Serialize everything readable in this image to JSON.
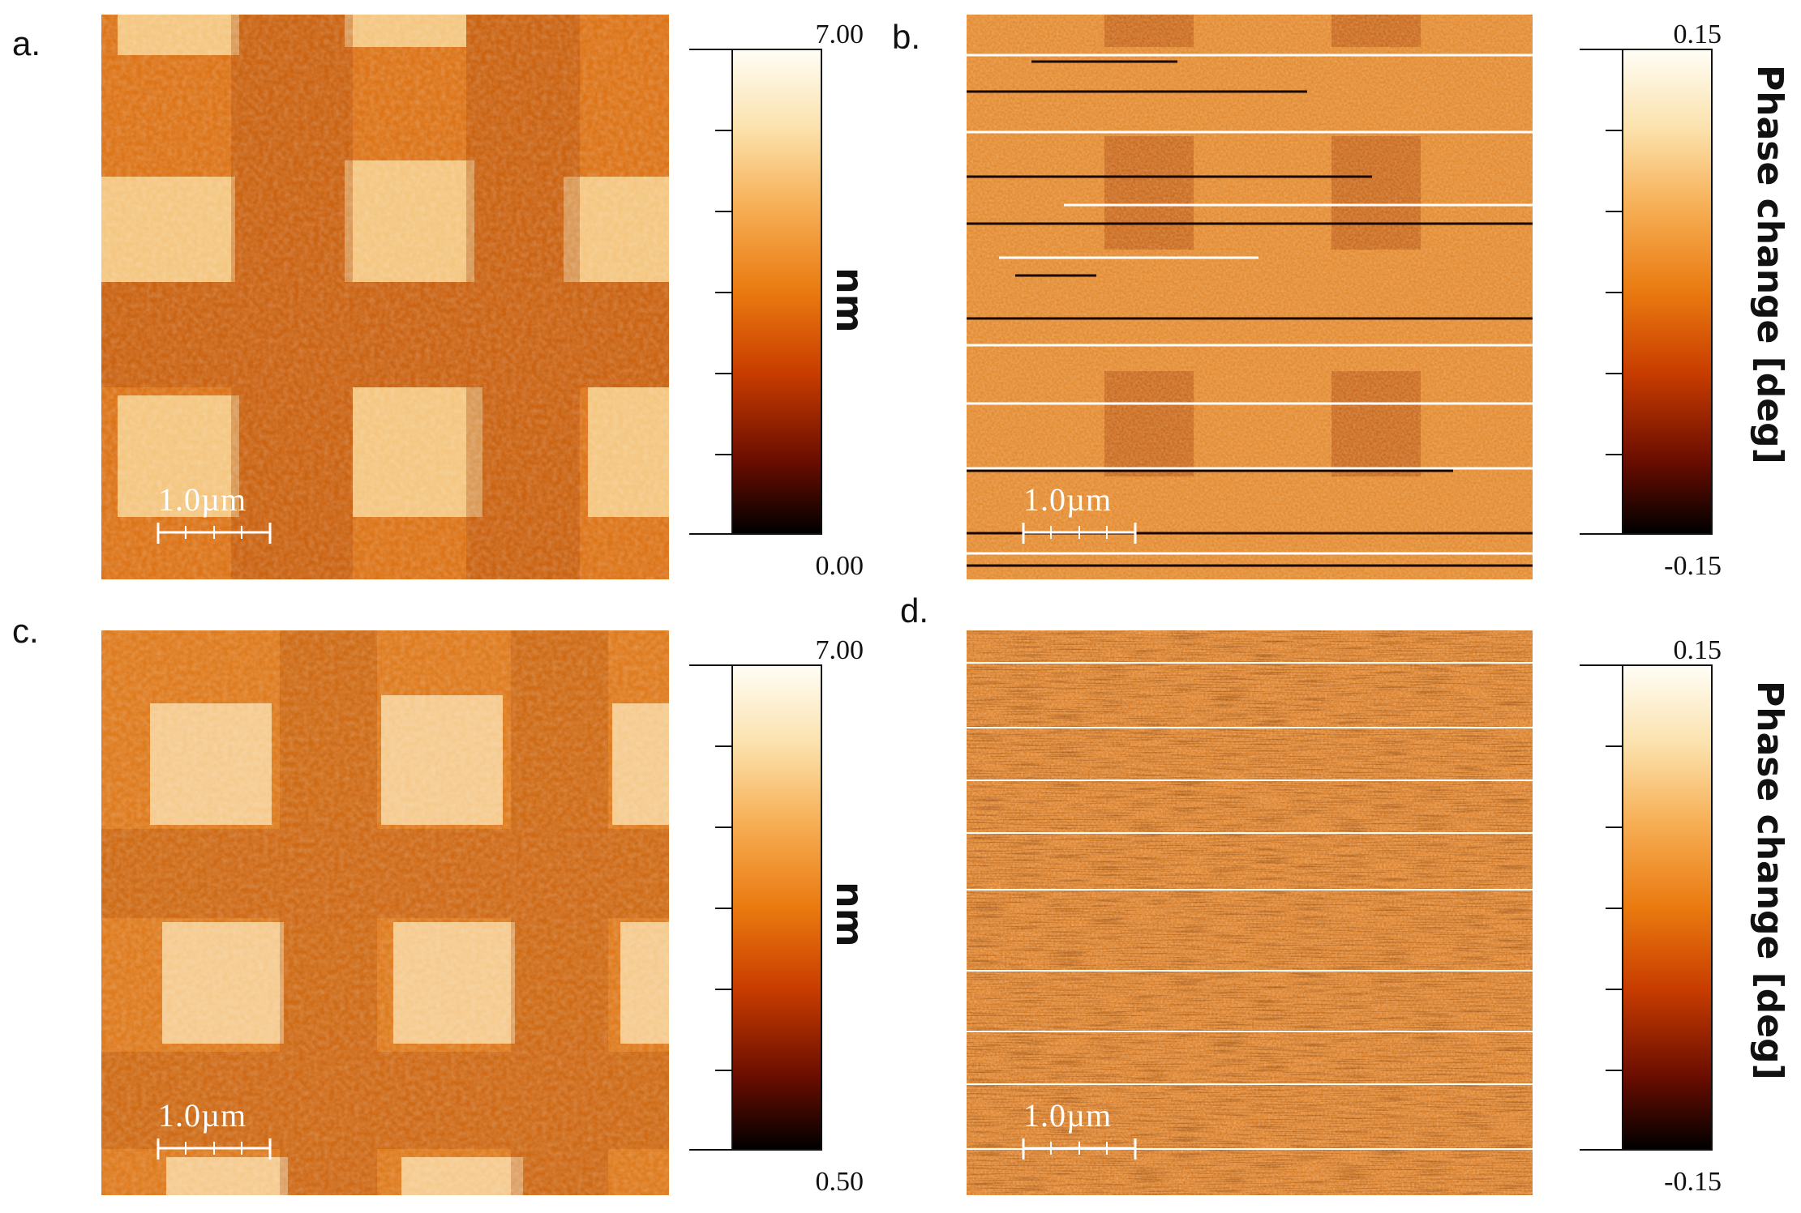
{
  "panels": [
    {
      "id": "a",
      "letter": "a.",
      "scale_label": "1.0µm",
      "colorbar": {
        "max_label": "7.00",
        "min_label": "0.00",
        "unit": "nm"
      },
      "kind": "height",
      "squares": "bright"
    },
    {
      "id": "b",
      "letter": "b.",
      "scale_label": "1.0µm",
      "colorbar": {
        "max_label": "0.15",
        "min_label": "-0.15",
        "unit": "Phase change [deg]"
      },
      "kind": "phase",
      "squares": "dark"
    },
    {
      "id": "c",
      "letter": "c.",
      "scale_label": "1.0µm",
      "colorbar": {
        "max_label": "7.00",
        "min_label": "0.50",
        "unit": "nm"
      },
      "kind": "height",
      "squares": "bright"
    },
    {
      "id": "d",
      "letter": "d.",
      "scale_label": "1.0µm",
      "colorbar": {
        "max_label": "0.15",
        "min_label": "-0.15",
        "unit": "Phase change [deg]"
      },
      "kind": "phase",
      "squares": "none"
    }
  ],
  "colormap": {
    "stops": [
      "#000000",
      "#6b0d00",
      "#c83c00",
      "#ea7a10",
      "#f7b057",
      "#fbe2ad",
      "#fffdf5"
    ]
  }
}
